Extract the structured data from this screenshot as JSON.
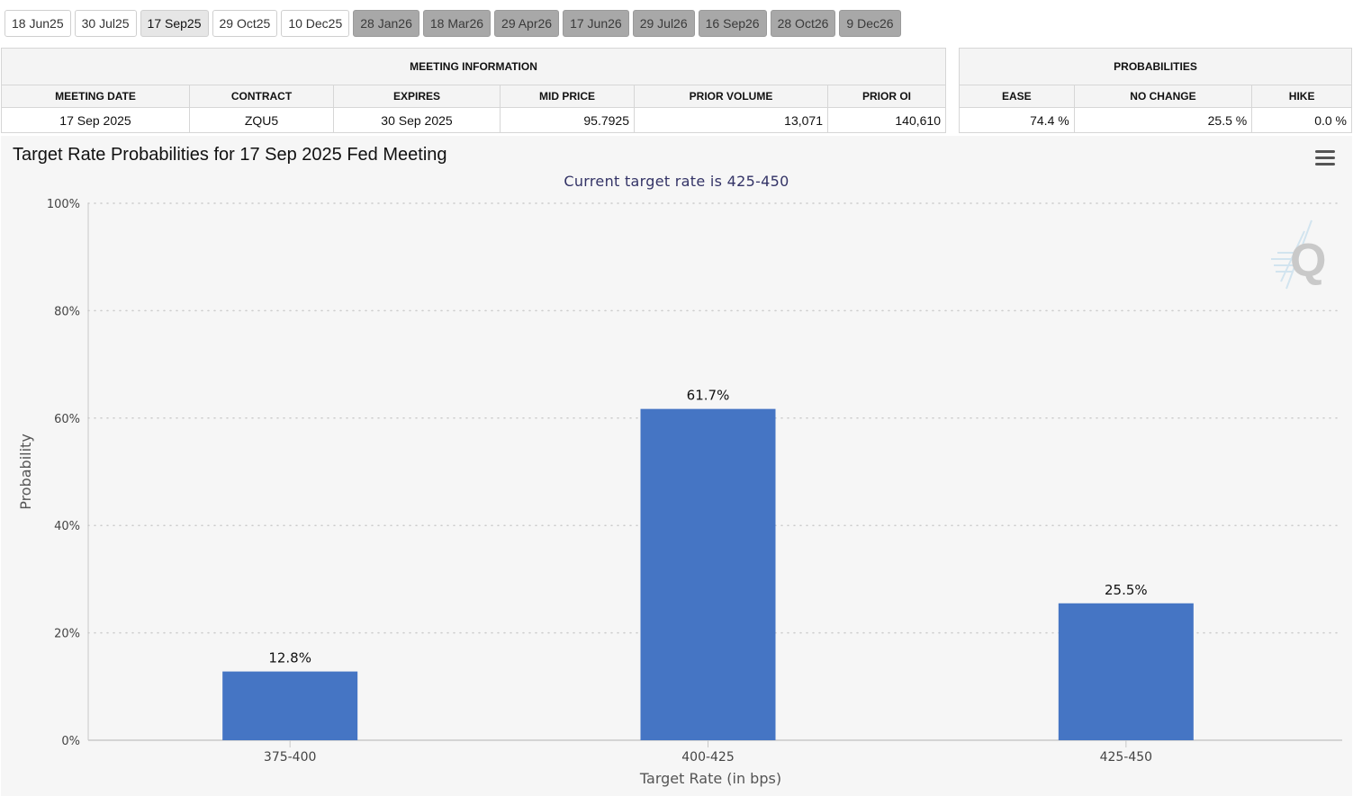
{
  "tabs": [
    {
      "label": "18 Jun25",
      "state": "normal"
    },
    {
      "label": "30 Jul25",
      "state": "normal"
    },
    {
      "label": "17 Sep25",
      "state": "active"
    },
    {
      "label": "29 Oct25",
      "state": "normal"
    },
    {
      "label": "10 Dec25",
      "state": "normal"
    },
    {
      "label": "28 Jan26",
      "state": "future"
    },
    {
      "label": "18 Mar26",
      "state": "future"
    },
    {
      "label": "29 Apr26",
      "state": "future"
    },
    {
      "label": "17 Jun26",
      "state": "future"
    },
    {
      "label": "29 Jul26",
      "state": "future"
    },
    {
      "label": "16 Sep26",
      "state": "future"
    },
    {
      "label": "28 Oct26",
      "state": "future"
    },
    {
      "label": "9 Dec26",
      "state": "future"
    }
  ],
  "meeting_info": {
    "header": "MEETING INFORMATION",
    "columns": [
      "MEETING DATE",
      "CONTRACT",
      "EXPIRES",
      "MID PRICE",
      "PRIOR VOLUME",
      "PRIOR OI"
    ],
    "row": [
      "17 Sep 2025",
      "ZQU5",
      "30 Sep 2025",
      "95.7925",
      "13,071",
      "140,610"
    ]
  },
  "probabilities": {
    "header": "PROBABILITIES",
    "columns": [
      "EASE",
      "NO CHANGE",
      "HIKE"
    ],
    "row": [
      "74.4 %",
      "25.5 %",
      "0.0 %"
    ]
  },
  "chart_icons": {
    "menu": "hamburger-menu-icon",
    "logo": "quikstrike-logo"
  },
  "chart_data": {
    "type": "bar",
    "title": "Target Rate Probabilities for 17 Sep 2025 Fed Meeting",
    "subtitle": "Current target rate is 425-450",
    "xlabel": "Target Rate (in bps)",
    "ylabel": "Probability",
    "categories": [
      "375-400",
      "400-425",
      "425-450"
    ],
    "values": [
      12.8,
      61.7,
      25.5
    ],
    "data_labels": [
      "12.8%",
      "61.7%",
      "25.5%"
    ],
    "ylim": [
      0,
      100
    ],
    "yticks": [
      "0%",
      "20%",
      "40%",
      "60%",
      "80%",
      "100%"
    ],
    "ytick_values": [
      0,
      20,
      40,
      60,
      80,
      100
    ],
    "grid": true,
    "bar_color": "#4575C4"
  }
}
